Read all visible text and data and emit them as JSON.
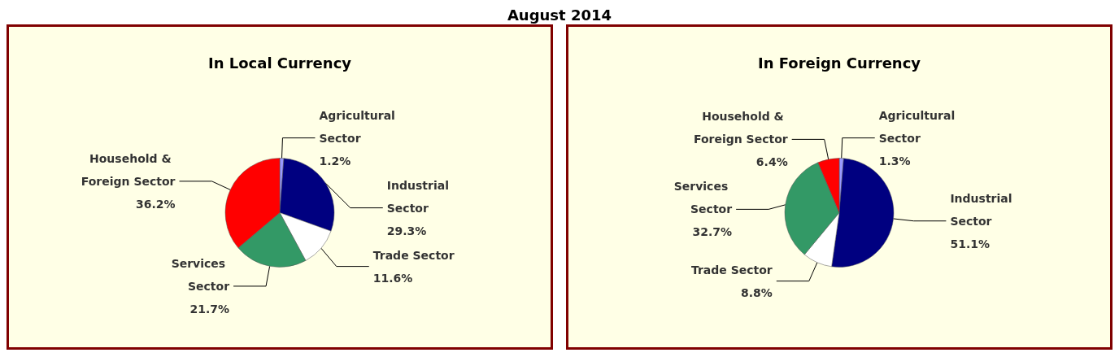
{
  "chart_data": [
    {
      "type": "pie",
      "title": "In Local Currency",
      "annotations": [
        "August 2014"
      ],
      "legend": false,
      "categories": [
        "Agricultural Sector",
        "Industrial Sector",
        "Trade Sector",
        "Services Sector",
        "Household & Foreign Sector"
      ],
      "values": [
        1.2,
        29.3,
        11.6,
        21.7,
        36.2
      ],
      "value_labels": [
        "1.2%",
        "29.3%",
        "11.6%",
        "21.7%",
        "36.2%"
      ],
      "colors": [
        "#9999ff",
        "#000080",
        "#ffffff",
        "#339966",
        "#ff0000"
      ]
    },
    {
      "type": "pie",
      "title": "In Foreign Currency",
      "legend": false,
      "categories": [
        "Agricultural Sector",
        "Industrial Sector",
        "Trade Sector",
        "Services Sector",
        "Household & Foreign Sector"
      ],
      "values": [
        1.3,
        51.1,
        8.8,
        32.7,
        6.4
      ],
      "value_labels": [
        "1.3%",
        "51.1%",
        "8.8%",
        "32.7%",
        "6.4%"
      ],
      "colors": [
        "#9999ff",
        "#000080",
        "#ffffff",
        "#339966",
        "#ff0000"
      ]
    }
  ]
}
